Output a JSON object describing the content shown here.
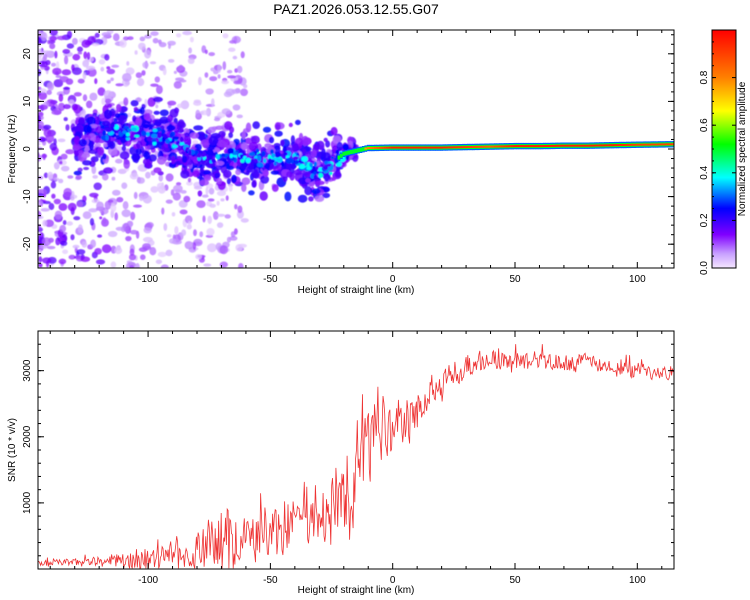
{
  "title": "PAZ1.2026.053.12.55.G07",
  "chart_data": [
    {
      "type": "heatmap",
      "title": "PAZ1.2026.053.12.55.G07",
      "xlabel": "Height of straight line (km)",
      "ylabel": "Frequency (Hz)",
      "xlim": [
        -145,
        115
      ],
      "ylim": [
        -25,
        25
      ],
      "xticks": [
        -100,
        -50,
        0,
        50,
        100
      ],
      "yticks": [
        -20,
        -10,
        0,
        10,
        20
      ],
      "colorbar": {
        "label": "Normalized spectral amplitude",
        "range": [
          0,
          1
        ],
        "ticks": [
          0.0,
          0.2,
          0.4,
          0.6,
          0.8
        ],
        "colormap": [
          "#f5e6ff",
          "#c8a0ff",
          "#8000ff",
          "#0000ff",
          "#00ffff",
          "#00ff00",
          "#ffff00",
          "#ff8000",
          "#ff0000"
        ]
      },
      "ridge": {
        "description_points_x": [
          -115,
          -100,
          -90,
          -85,
          -80,
          -70,
          -60,
          -50,
          -40,
          -35,
          -30,
          -25,
          -20,
          -10,
          0,
          10,
          20,
          30,
          40,
          50,
          60,
          70,
          80,
          90,
          100,
          115
        ],
        "frequency": [
          3.5,
          3,
          2,
          0.5,
          -1.5,
          -1.5,
          -2,
          -2,
          -1.5,
          -3.5,
          -5,
          -3,
          -1,
          0.2,
          0.3,
          0.3,
          0.3,
          0.4,
          0.5,
          0.6,
          0.6,
          0.7,
          0.7,
          0.8,
          0.9,
          1.0
        ],
        "amplitude": [
          0.3,
          0.3,
          0.25,
          0.3,
          0.35,
          0.35,
          0.3,
          0.3,
          0.3,
          0.3,
          0.35,
          0.4,
          0.55,
          0.8,
          0.95,
          0.95,
          0.95,
          0.9,
          0.85,
          0.95,
          0.95,
          0.95,
          0.95,
          0.95,
          0.9,
          0.9
        ]
      }
    },
    {
      "type": "line",
      "xlabel": "Height of straight line (km)",
      "ylabel": "SNR (10 * v/v)",
      "xlim": [
        -145,
        115
      ],
      "ylim": [
        0,
        3600
      ],
      "xticks": [
        -100,
        -50,
        0,
        50,
        100
      ],
      "yticks": [
        1000,
        2000,
        3000
      ],
      "color": "#ee3333",
      "series": [
        {
          "name": "SNR",
          "x": [
            -145,
            -130,
            -120,
            -110,
            -100,
            -95,
            -90,
            -85,
            -80,
            -75,
            -70,
            -60,
            -50,
            -40,
            -30,
            -25,
            -20,
            -15,
            -12,
            -10,
            -5,
            0,
            5,
            10,
            15,
            20,
            25,
            30,
            35,
            40,
            50,
            60,
            70,
            80,
            90,
            100,
            110,
            115
          ],
          "mean": [
            80,
            100,
            100,
            120,
            150,
            170,
            200,
            220,
            300,
            380,
            420,
            500,
            600,
            700,
            850,
            1000,
            1200,
            1500,
            1800,
            1900,
            2000,
            2050,
            2200,
            2400,
            2600,
            2800,
            2950,
            3050,
            3100,
            3150,
            3150,
            3200,
            3100,
            3150,
            3050,
            3000,
            2950,
            2950
          ],
          "spread": [
            60,
            80,
            100,
            150,
            200,
            220,
            250,
            300,
            400,
            450,
            500,
            500,
            500,
            550,
            650,
            700,
            800,
            900,
            1000,
            900,
            700,
            500,
            450,
            400,
            350,
            300,
            250,
            250,
            200,
            200,
            180,
            180,
            150,
            150,
            150,
            150,
            120,
            120
          ]
        }
      ]
    }
  ]
}
